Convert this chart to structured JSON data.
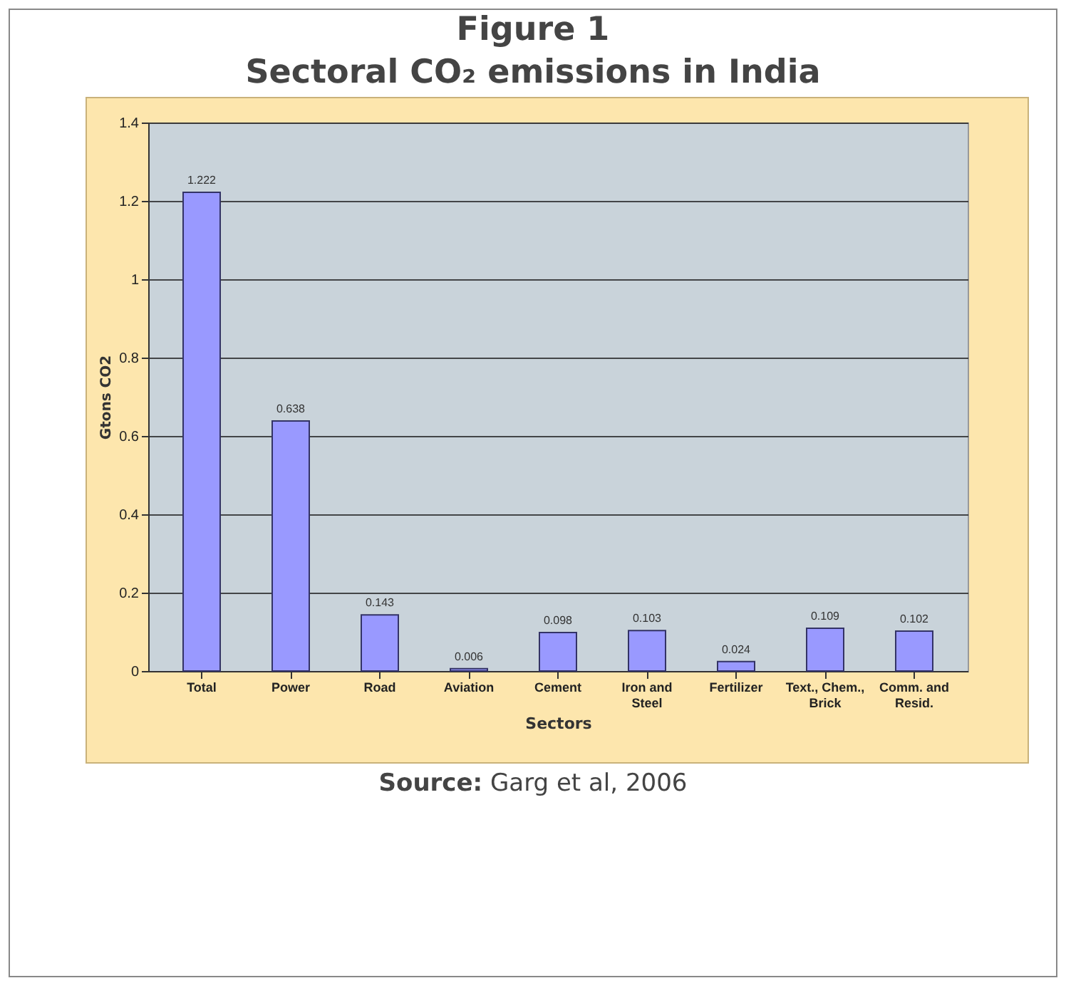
{
  "chart_data": {
    "type": "bar",
    "title": "Figure 1",
    "subtitle": "Sectoral CO₂ emissions in India",
    "xlabel": "Sectors",
    "ylabel": "Gtons CO2",
    "categories": [
      "Total",
      "Power",
      "Road",
      "Aviation",
      "Cement",
      "Iron and Steel",
      "Fertilizer",
      "Text., Chem., Brick",
      "Comm. and Resid."
    ],
    "values": [
      1.222,
      0.638,
      0.143,
      0.006,
      0.098,
      0.103,
      0.024,
      0.109,
      0.102
    ],
    "color": "#9999ff",
    "data_labels": true,
    "ylim": [
      0,
      1.4
    ],
    "yticks": [
      0,
      0.2,
      0.4,
      0.6,
      0.8,
      1,
      1.2,
      1.4
    ],
    "grid": "y",
    "annotations": [
      "Source: Garg et al, 2006"
    ]
  }
}
